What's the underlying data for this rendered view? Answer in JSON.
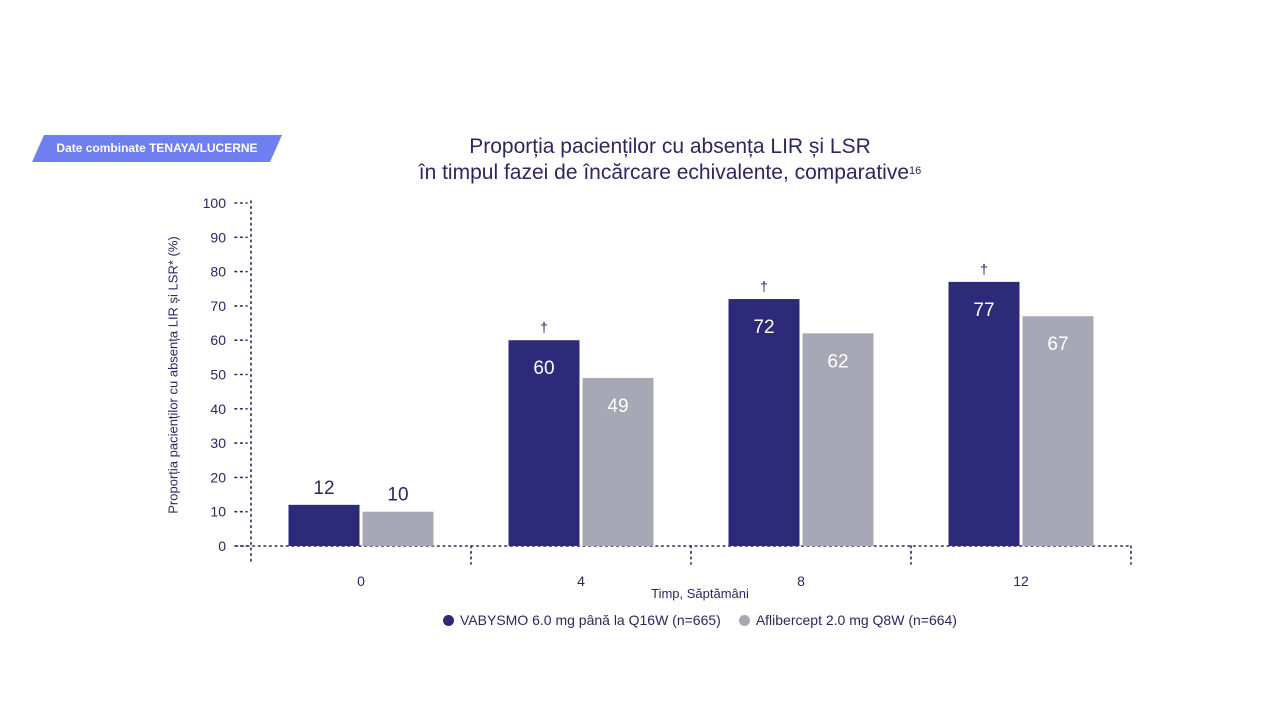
{
  "badge": {
    "label": "Date combinate TENAYA/LUCERNE",
    "color": "#6f7ff0"
  },
  "chart_data": {
    "type": "bar",
    "title_line1": "Proporția pacienților cu absența LIR și LSR",
    "title_line2": "în timpul fazei de încărcare echivalente, comparative",
    "title_sup": "16",
    "xlabel": "Timp, Săptămâni",
    "ylabel": "Proporția pacienților cu absența LIR și LSR* (%)",
    "ylim": [
      0,
      100
    ],
    "yticks": [
      0,
      10,
      20,
      30,
      40,
      50,
      60,
      70,
      80,
      90,
      100
    ],
    "categories": [
      "0",
      "4",
      "8",
      "12"
    ],
    "series": [
      {
        "name": "VABYSMO 6.0 mg până la Q16W (n=665)",
        "values": [
          12,
          60,
          72,
          77
        ],
        "color": "#2e2a7a"
      },
      {
        "name": "Aflibercept 2.0 mg Q8W (n=664)",
        "values": [
          10,
          49,
          62,
          67
        ],
        "color": "#a8a7b6"
      }
    ],
    "significance_marks": [
      "",
      "†",
      "†",
      "†"
    ],
    "grid": false,
    "legend_position": "bottom"
  }
}
